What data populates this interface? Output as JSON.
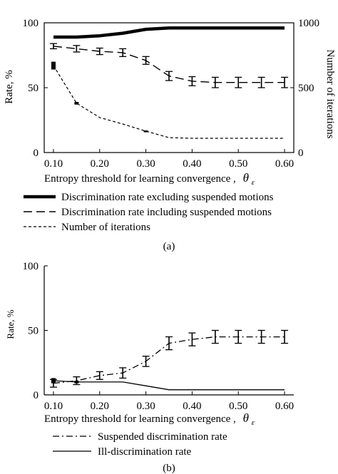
{
  "chart_data": [
    {
      "type": "line",
      "panel_label": "(a)",
      "xlabel": "Entropy threshold for learning convergence ,",
      "xlabel_symbol": "θ",
      "xlabel_subscript": "ε",
      "ylabel": "Rate, %",
      "y2label": "Number of iterations",
      "xlim": [
        0.08,
        0.62
      ],
      "ylim": [
        0,
        100
      ],
      "y2lim": [
        0,
        1000
      ],
      "x_ticks": [
        "0.10",
        "0.20",
        "0.30",
        "0.40",
        "0.50",
        "0.60"
      ],
      "y_ticks": [
        "0",
        "50",
        "100"
      ],
      "y2_ticks": [
        "0",
        "500",
        "1000"
      ],
      "grid": false,
      "legend_position": "below",
      "series": [
        {
          "name": "Discrimination rate excluding suspended motions",
          "axis": "left",
          "style": "thick-solid",
          "x": [
            0.1,
            0.15,
            0.2,
            0.25,
            0.3,
            0.35,
            0.4,
            0.45,
            0.5,
            0.55,
            0.6
          ],
          "y": [
            89,
            89,
            90,
            92,
            95,
            96,
            96,
            96,
            96,
            96,
            96
          ]
        },
        {
          "name": "Discrimination rate including suspended motions",
          "axis": "left",
          "style": "dashed",
          "error_bars": true,
          "x": [
            0.1,
            0.15,
            0.2,
            0.25,
            0.3,
            0.35,
            0.4,
            0.45,
            0.5,
            0.55,
            0.6
          ],
          "y": [
            82,
            80,
            78,
            77,
            71,
            59,
            55,
            54,
            54,
            54,
            54
          ],
          "err": [
            2.0,
            2.5,
            2.5,
            3.0,
            3.0,
            3.5,
            3.5,
            4.0,
            4.0,
            4.0,
            4.0
          ]
        },
        {
          "name": "Number of iterations",
          "axis": "right",
          "style": "dotted",
          "x": [
            0.1,
            0.15,
            0.2,
            0.25,
            0.3,
            0.35,
            0.4,
            0.45,
            0.5,
            0.55,
            0.6
          ],
          "y": [
            670,
            380,
            270,
            220,
            165,
            115,
            110,
            110,
            110,
            110,
            110
          ],
          "err": [
            30,
            10,
            0,
            0,
            5,
            0,
            0,
            0,
            0,
            0,
            0
          ]
        }
      ]
    },
    {
      "type": "line",
      "panel_label": "(b)",
      "xlabel": "Entropy threshold for learning convergence ,",
      "xlabel_symbol": "θ",
      "xlabel_subscript": "ε",
      "ylabel": "Rate, %",
      "xlim": [
        0.08,
        0.62
      ],
      "ylim": [
        0,
        100
      ],
      "x_ticks": [
        "0.10",
        "0.20",
        "0.30",
        "0.40",
        "0.50",
        "0.60"
      ],
      "y_ticks": [
        "0",
        "50",
        "100"
      ],
      "grid": false,
      "legend_position": "below",
      "series": [
        {
          "name": "Suspended discrimination rate",
          "style": "dash-dot",
          "error_bars": true,
          "x": [
            0.1,
            0.15,
            0.2,
            0.25,
            0.3,
            0.35,
            0.4,
            0.45,
            0.5,
            0.55,
            0.6
          ],
          "y": [
            9,
            11,
            15,
            17,
            26,
            40,
            43,
            45,
            45,
            45,
            45
          ],
          "err": [
            3,
            3,
            3,
            4,
            4,
            5,
            5,
            5,
            5,
            5,
            5
          ]
        },
        {
          "name": "Ill-discrimination rate",
          "style": "solid",
          "x": [
            0.1,
            0.15,
            0.2,
            0.25,
            0.3,
            0.35,
            0.4,
            0.45,
            0.5,
            0.55,
            0.6
          ],
          "y": [
            11,
            10,
            10,
            10,
            7,
            4,
            4,
            4,
            4,
            4,
            4
          ],
          "err": [
            2,
            1,
            0,
            0,
            0,
            0,
            0,
            0,
            0,
            0,
            0
          ]
        }
      ]
    }
  ]
}
